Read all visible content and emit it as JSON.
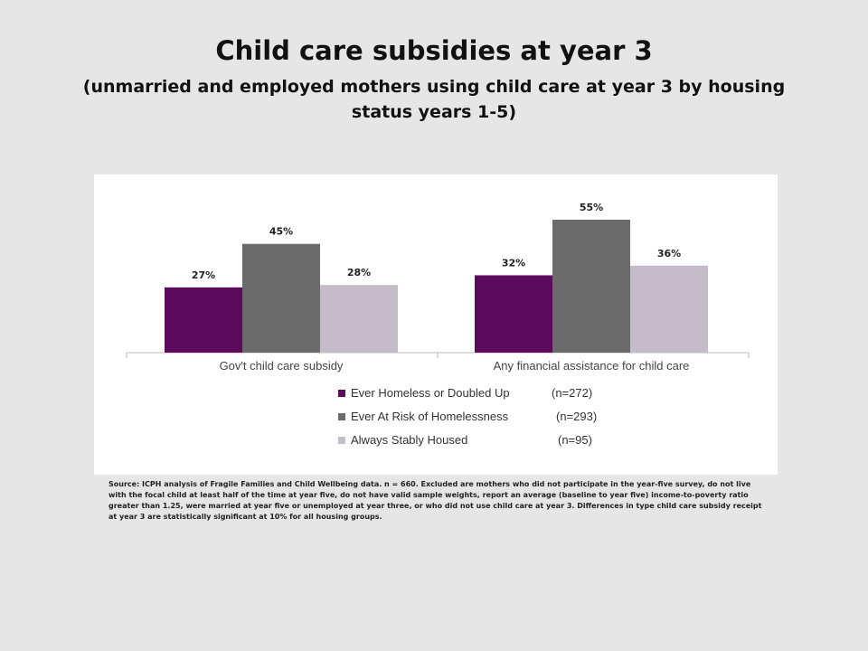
{
  "title": "Child care subsidies at year 3",
  "subtitle": "(unmarried and employed mothers using child care at year 3 by housing status years 1-5)",
  "source_note": "Source: ICPH analysis of Fragile Families and Child Wellbeing data. n = 660. Excluded are mothers who did not participate in the year-five survey, do not live with the focal child at least half of the time at year five, do not have valid sample weights, report an average (baseline to year five) income-to-poverty ratio greater than 1.25, were married at year five or unemployed at year three, or who did not use child care at year 3. Differences in type child care subsidy receipt at year 3 are statistically significant at 10% for all housing groups.",
  "chart_data": {
    "type": "bar",
    "categories": [
      "Gov't child care subsidy",
      "Any financial assistance for child care"
    ],
    "series": [
      {
        "name": "Ever Homeless or Doubled Up",
        "n": "(n=272)",
        "color": "#5c0a5c",
        "values": [
          27,
          32
        ],
        "labels": [
          "27%",
          "32%"
        ]
      },
      {
        "name": "Ever At Risk of Homelessness",
        "n": "(n=293)",
        "color": "#6b6b6b",
        "values": [
          45,
          55
        ],
        "labels": [
          "45%",
          "55%"
        ]
      },
      {
        "name": "Always Stably Housed",
        "n": "(n=95)",
        "color": "#c4bcc9",
        "values": [
          28,
          36
        ],
        "labels": [
          "28%",
          "36%"
        ]
      }
    ],
    "ylim": [
      0,
      60
    ],
    "grid": false,
    "legend": "bottom-center"
  }
}
